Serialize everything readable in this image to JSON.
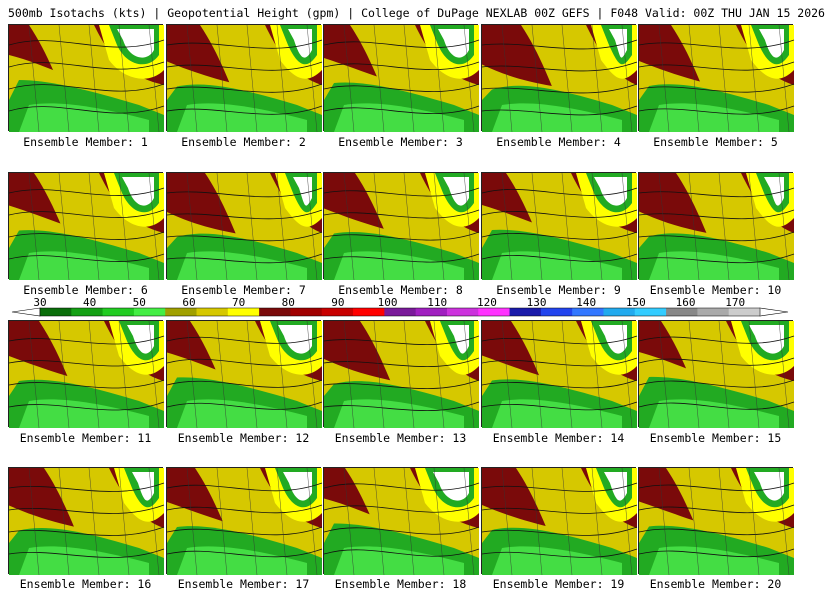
{
  "header": {
    "title": "500mb Isotachs (kts) | Geopotential Height (gpm) | College of DuPage NEXLAB   00Z GEFS | F048 Valid: 00Z THU JAN 15 2026"
  },
  "panels": [
    {
      "label": "Ensemble Member: 1"
    },
    {
      "label": "Ensemble Member: 2"
    },
    {
      "label": "Ensemble Member: 3"
    },
    {
      "label": "Ensemble Member: 4"
    },
    {
      "label": "Ensemble Member: 5"
    },
    {
      "label": "Ensemble Member: 6"
    },
    {
      "label": "Ensemble Member: 7"
    },
    {
      "label": "Ensemble Member: 8"
    },
    {
      "label": "Ensemble Member: 9"
    },
    {
      "label": "Ensemble Member: 10"
    },
    {
      "label": "Ensemble Member: 11"
    },
    {
      "label": "Ensemble Member: 12"
    },
    {
      "label": "Ensemble Member: 13"
    },
    {
      "label": "Ensemble Member: 14"
    },
    {
      "label": "Ensemble Member: 15"
    },
    {
      "label": "Ensemble Member: 16"
    },
    {
      "label": "Ensemble Member: 17"
    },
    {
      "label": "Ensemble Member: 18"
    },
    {
      "label": "Ensemble Member: 19"
    },
    {
      "label": "Ensemble Member: 20"
    }
  ],
  "colorbar": {
    "ticks": [
      "30",
      "40",
      "50",
      "60",
      "70",
      "80",
      "90",
      "100",
      "110",
      "120",
      "130",
      "140",
      "150",
      "160",
      "170"
    ],
    "colors": [
      "#0a6e0a",
      "#14a014",
      "#22cc22",
      "#44ee44",
      "#a0a000",
      "#d6c800",
      "#ffff00",
      "#7a0a0a",
      "#a00000",
      "#c80000",
      "#ff0000",
      "#7a1a9a",
      "#a020c0",
      "#cc33dd",
      "#ff33ff",
      "#1a1aaa",
      "#2244ee",
      "#3377ff",
      "#22aaee",
      "#33ccff",
      "#888888",
      "#aaaaaa",
      "#cccccc"
    ]
  }
}
